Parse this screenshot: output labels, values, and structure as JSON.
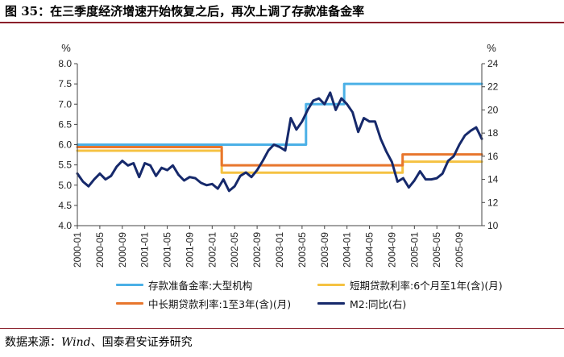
{
  "title": "图 35：在三季度经济增速开始恢复之后，再次上调了存款准备金率",
  "source": {
    "prefix": "数据来源：",
    "wind": "Wind",
    "suffix": "、国泰君安证券研究"
  },
  "chart_data": {
    "type": "line",
    "left_unit": "%",
    "right_unit": "%",
    "ylim_left": [
      4.0,
      8.0
    ],
    "ylim_right": [
      10,
      24
    ],
    "yticks_left": [
      "8.0",
      "7.5",
      "7.0",
      "6.5",
      "6.0",
      "5.5",
      "5.0",
      "4.5",
      "4.0"
    ],
    "yticks_right": [
      "24",
      "22",
      "20",
      "18",
      "16",
      "14",
      "12",
      "10"
    ],
    "x_tick_labels": [
      "2000-01",
      "2000-05",
      "2000-09",
      "2001-01",
      "2001-05",
      "2001-09",
      "2002-01",
      "2002-05",
      "2002-09",
      "2003-01",
      "2003-05",
      "2003-09",
      "2004-01",
      "2004-05",
      "2004-09",
      "2005-01",
      "2005-05",
      "2005-09"
    ],
    "x_range": [
      0,
      72
    ],
    "series": [
      {
        "name": "存款准备金率:大型机构",
        "axis": "left",
        "color": "#4bb0e6",
        "step": true,
        "points": [
          [
            0,
            6.0
          ],
          [
            40.7,
            6.0
          ],
          [
            40.7,
            7.0
          ],
          [
            47.5,
            7.0
          ],
          [
            47.5,
            7.5
          ],
          [
            72,
            7.5
          ]
        ]
      },
      {
        "name": "短期贷款利率:6个月至1年(含)(月)",
        "axis": "left",
        "color": "#f5c242",
        "step": true,
        "points": [
          [
            0,
            5.85
          ],
          [
            25.7,
            5.85
          ],
          [
            25.7,
            5.31
          ],
          [
            57.9,
            5.31
          ],
          [
            57.9,
            5.58
          ],
          [
            72,
            5.58
          ]
        ]
      },
      {
        "name": "中长期贷款利率:1至3年(含)(月)",
        "axis": "left",
        "color": "#e8762d",
        "step": true,
        "points": [
          [
            0,
            5.94
          ],
          [
            25.7,
            5.94
          ],
          [
            25.7,
            5.49
          ],
          [
            57.9,
            5.49
          ],
          [
            57.9,
            5.76
          ],
          [
            72,
            5.76
          ]
        ]
      },
      {
        "name": "M2:同比(右)",
        "axis": "right",
        "color": "#16296b",
        "step": false,
        "points": [
          [
            0,
            14.5
          ],
          [
            1,
            13.8
          ],
          [
            2,
            13.4
          ],
          [
            3,
            14.0
          ],
          [
            4,
            14.5
          ],
          [
            5,
            14.0
          ],
          [
            6,
            14.3
          ],
          [
            7,
            15.1
          ],
          [
            8,
            15.6
          ],
          [
            9,
            15.2
          ],
          [
            10,
            15.4
          ],
          [
            11,
            14.2
          ],
          [
            12,
            15.4
          ],
          [
            13,
            15.2
          ],
          [
            14,
            14.3
          ],
          [
            15,
            15.0
          ],
          [
            16,
            14.8
          ],
          [
            17,
            15.2
          ],
          [
            18,
            14.4
          ],
          [
            19,
            13.9
          ],
          [
            20,
            14.2
          ],
          [
            21,
            14.1
          ],
          [
            22,
            13.7
          ],
          [
            23,
            13.5
          ],
          [
            24,
            13.6
          ],
          [
            25,
            13.2
          ],
          [
            26,
            14.0
          ],
          [
            27,
            13.0
          ],
          [
            28,
            13.4
          ],
          [
            29,
            14.3
          ],
          [
            30,
            14.6
          ],
          [
            31,
            14.2
          ],
          [
            32,
            14.8
          ],
          [
            33,
            15.6
          ],
          [
            34,
            16.5
          ],
          [
            35,
            17.0
          ],
          [
            36,
            16.8
          ],
          [
            37,
            16.5
          ],
          [
            38,
            19.3
          ],
          [
            39,
            18.3
          ],
          [
            40,
            19.0
          ],
          [
            41,
            20.0
          ],
          [
            42,
            20.8
          ],
          [
            43,
            21.0
          ],
          [
            44,
            20.5
          ],
          [
            45,
            21.5
          ],
          [
            46,
            20.0
          ],
          [
            47,
            21.0
          ],
          [
            48,
            20.5
          ],
          [
            49,
            19.8
          ],
          [
            50,
            18.1
          ],
          [
            51,
            19.3
          ],
          [
            52,
            19.0
          ],
          [
            53,
            19.0
          ],
          [
            54,
            17.5
          ],
          [
            55,
            16.4
          ],
          [
            56,
            15.5
          ],
          [
            57,
            13.8
          ],
          [
            58,
            14.1
          ],
          [
            59,
            13.3
          ],
          [
            60,
            13.9
          ],
          [
            61,
            14.7
          ],
          [
            62,
            14.0
          ],
          [
            63,
            14.0
          ],
          [
            64,
            14.1
          ],
          [
            65,
            14.5
          ],
          [
            66,
            15.6
          ],
          [
            67,
            16.0
          ],
          [
            68,
            17.0
          ],
          [
            69,
            17.8
          ],
          [
            70,
            18.2
          ],
          [
            71,
            18.5
          ],
          [
            72,
            17.5
          ]
        ]
      }
    ]
  }
}
